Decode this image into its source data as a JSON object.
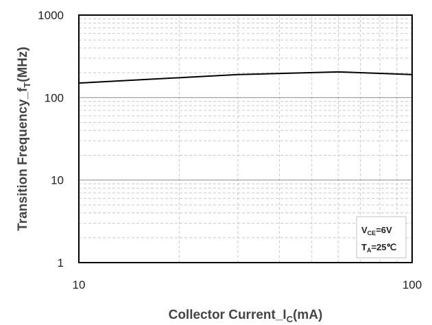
{
  "chart_data": {
    "type": "line",
    "title": "",
    "xlabel": {
      "main": "Collector Current_I",
      "sub": "C",
      "unit": "(mA)"
    },
    "ylabel": {
      "main": "Transition Frequency_f",
      "sub": "T",
      "unit": "(MHz)"
    },
    "x_scale": "log",
    "y_scale": "log",
    "xlim": [
      10,
      100
    ],
    "ylim": [
      1,
      1000
    ],
    "x_ticks": [
      10,
      100
    ],
    "x_tick_labels": [
      "10",
      "100"
    ],
    "y_ticks": [
      1,
      10,
      100,
      1000
    ],
    "y_tick_labels": [
      "1",
      "10",
      "100",
      "1000"
    ],
    "grid": true,
    "series": [
      {
        "color": "#000000",
        "x": [
          10,
          30,
          60,
          100
        ],
        "y": [
          150,
          190,
          205,
          190
        ]
      }
    ],
    "annotation": {
      "line1": {
        "main": "V",
        "sub": "CE",
        "rest": "=6V"
      },
      "line2": {
        "main": "T",
        "sub": "A",
        "rest": "=25℃"
      }
    },
    "colors": {
      "minor_grid": "#c8c8c8",
      "major_grid": "#8c8c8c",
      "frame": "#000000"
    }
  }
}
